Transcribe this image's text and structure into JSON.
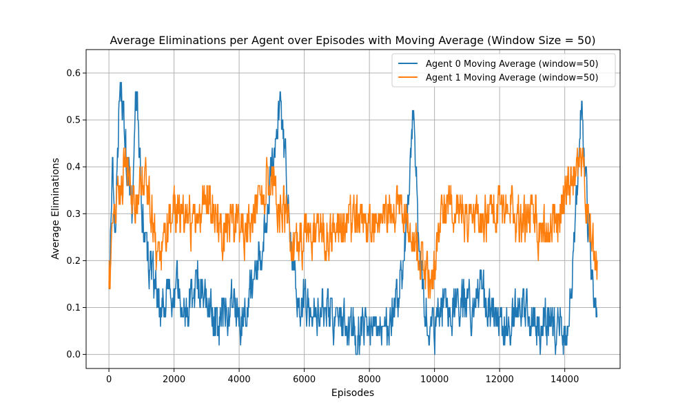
{
  "chart_data": {
    "type": "line",
    "title": "Average Eliminations per Agent over Episodes with Moving Average (Window Size = 50)",
    "xlabel": "Episodes",
    "ylabel": "Average Eliminations",
    "xlim": [
      -700,
      15700
    ],
    "ylim": [
      -0.03,
      0.65
    ],
    "x_ticks": [
      0,
      2000,
      4000,
      6000,
      8000,
      10000,
      12000,
      14000
    ],
    "y_ticks": [
      0.0,
      0.1,
      0.2,
      0.3,
      0.4,
      0.5,
      0.6
    ],
    "grid": true,
    "legend_position": "top-right",
    "x_range": [
      0,
      15000
    ],
    "series": [
      {
        "name": "Agent 0 Moving Average (window=50)",
        "color": "#1f77b4",
        "x": [
          0,
          100,
          200,
          350,
          500,
          700,
          850,
          1000,
          1200,
          1350,
          1500,
          1800,
          2100,
          2400,
          2700,
          3000,
          3300,
          3500,
          3800,
          4100,
          4400,
          4700,
          4900,
          5100,
          5250,
          5400,
          5600,
          5800,
          6100,
          6400,
          6700,
          7000,
          7300,
          7600,
          7900,
          8200,
          8500,
          8800,
          9000,
          9200,
          9350,
          9500,
          9700,
          9900,
          10000,
          10200,
          10500,
          10800,
          11100,
          11400,
          11700,
          12000,
          12300,
          12600,
          12900,
          13200,
          13500,
          13800,
          14000,
          14200,
          14350,
          14500,
          14700,
          14850,
          15000
        ],
        "values": [
          0.18,
          0.42,
          0.3,
          0.62,
          0.44,
          0.3,
          0.58,
          0.3,
          0.2,
          0.16,
          0.1,
          0.12,
          0.14,
          0.08,
          0.16,
          0.12,
          0.06,
          0.1,
          0.1,
          0.08,
          0.14,
          0.22,
          0.36,
          0.44,
          0.54,
          0.4,
          0.2,
          0.12,
          0.1,
          0.08,
          0.1,
          0.08,
          0.06,
          0.04,
          0.04,
          0.06,
          0.06,
          0.1,
          0.18,
          0.34,
          0.54,
          0.2,
          0.1,
          0.06,
          0.05,
          0.1,
          0.1,
          0.12,
          0.1,
          0.14,
          0.1,
          0.06,
          0.06,
          0.1,
          0.08,
          0.06,
          0.08,
          0.06,
          0.04,
          0.16,
          0.34,
          0.52,
          0.3,
          0.16,
          0.08
        ],
        "noise": 0.07
      },
      {
        "name": "Agent 1 Moving Average (window=50)",
        "color": "#ff7f0e",
        "x": [
          0,
          100,
          200,
          350,
          500,
          700,
          850,
          1000,
          1200,
          1350,
          1500,
          1800,
          2100,
          2400,
          2700,
          3000,
          3300,
          3500,
          3800,
          4100,
          4400,
          4700,
          4900,
          5100,
          5250,
          5400,
          5600,
          5800,
          6100,
          6400,
          6700,
          7000,
          7300,
          7600,
          7900,
          8200,
          8500,
          8800,
          9000,
          9200,
          9350,
          9500,
          9700,
          9900,
          10000,
          10200,
          10500,
          10800,
          11100,
          11400,
          11700,
          12000,
          12300,
          12600,
          12900,
          13200,
          13500,
          13800,
          14000,
          14200,
          14350,
          14500,
          14700,
          14850,
          15000
        ],
        "values": [
          0.16,
          0.24,
          0.3,
          0.36,
          0.4,
          0.34,
          0.32,
          0.4,
          0.36,
          0.28,
          0.2,
          0.28,
          0.3,
          0.3,
          0.28,
          0.34,
          0.28,
          0.26,
          0.3,
          0.26,
          0.3,
          0.36,
          0.38,
          0.36,
          0.32,
          0.3,
          0.24,
          0.22,
          0.28,
          0.26,
          0.24,
          0.26,
          0.28,
          0.3,
          0.28,
          0.3,
          0.3,
          0.32,
          0.3,
          0.28,
          0.26,
          0.22,
          0.16,
          0.14,
          0.2,
          0.3,
          0.32,
          0.3,
          0.28,
          0.3,
          0.3,
          0.3,
          0.32,
          0.28,
          0.3,
          0.26,
          0.28,
          0.3,
          0.34,
          0.38,
          0.4,
          0.42,
          0.3,
          0.24,
          0.18
        ],
        "noise": 0.075
      }
    ]
  }
}
